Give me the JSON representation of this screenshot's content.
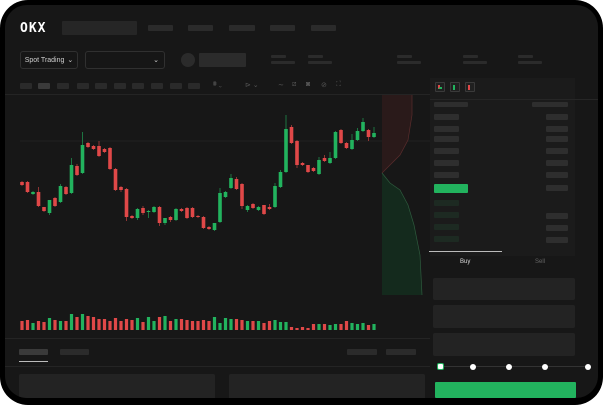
{
  "header": {
    "logo": "OKX",
    "nav_items": 5
  },
  "controls": {
    "market_button": "Spot Trading",
    "market_chevron": "⌄",
    "pair_chevron": "⌄"
  },
  "orderbook": {
    "tabs": [
      "Buy",
      "Sell"
    ],
    "active_tab": "Buy"
  },
  "order_form": {
    "slider_value_percent": 0,
    "slider_marks": [
      0,
      25,
      50,
      75,
      100
    ]
  },
  "colors": {
    "up": "#22b35e",
    "down": "#e04848",
    "accent": "#22b35e",
    "background": "#171717"
  },
  "chart_data": {
    "type": "candlestick",
    "candles": [
      [
        58,
        55,
        59,
        54
      ],
      [
        58,
        48,
        59,
        47
      ],
      [
        46,
        48,
        49,
        45
      ],
      [
        48,
        34,
        53,
        33
      ],
      [
        33,
        29,
        33,
        28
      ],
      [
        27,
        40,
        40,
        25
      ],
      [
        42,
        34,
        43,
        33
      ],
      [
        38,
        54,
        56,
        37
      ],
      [
        53,
        46,
        54,
        45
      ],
      [
        47,
        75,
        82,
        46
      ],
      [
        74,
        65,
        76,
        64
      ],
      [
        67,
        95,
        108,
        66
      ],
      [
        97,
        93,
        98,
        92
      ],
      [
        94,
        91,
        95,
        90
      ],
      [
        94,
        84,
        99,
        83
      ],
      [
        91,
        88,
        92,
        87
      ],
      [
        92,
        71,
        93,
        70
      ],
      [
        71,
        50,
        72,
        49
      ],
      [
        53,
        50,
        54,
        48
      ],
      [
        51,
        23,
        52,
        19
      ],
      [
        24,
        22,
        25,
        21
      ],
      [
        22,
        31,
        32,
        20
      ],
      [
        32,
        27,
        34,
        25
      ],
      [
        28,
        29,
        30,
        22
      ],
      [
        28,
        33,
        34,
        27
      ],
      [
        33,
        17,
        34,
        14
      ],
      [
        17,
        22,
        22,
        15
      ],
      [
        23,
        20,
        24,
        18
      ],
      [
        20,
        31,
        32,
        19
      ],
      [
        31,
        29,
        32,
        28
      ],
      [
        32,
        22,
        33,
        21
      ],
      [
        32,
        23,
        33,
        22
      ],
      [
        24,
        23,
        25,
        22
      ],
      [
        23,
        12,
        24,
        11
      ],
      [
        13,
        11,
        14,
        10
      ],
      [
        10,
        17,
        17,
        9
      ],
      [
        18,
        47,
        52,
        17
      ],
      [
        43,
        48,
        49,
        42
      ],
      [
        52,
        62,
        66,
        51
      ],
      [
        61,
        51,
        63,
        50
      ],
      [
        56,
        34,
        57,
        31
      ],
      [
        30,
        34,
        35,
        28
      ],
      [
        36,
        32,
        37,
        31
      ],
      [
        30,
        33,
        34,
        29
      ],
      [
        35,
        26,
        35,
        25
      ],
      [
        33,
        31,
        36,
        30
      ],
      [
        33,
        54,
        57,
        32
      ],
      [
        53,
        68,
        70,
        52
      ],
      [
        68,
        111,
        125,
        67
      ],
      [
        113,
        97,
        115,
        96
      ],
      [
        99,
        75,
        100,
        72
      ],
      [
        77,
        75,
        78,
        74
      ],
      [
        75,
        68,
        75,
        67
      ],
      [
        72,
        69,
        73,
        68
      ],
      [
        66,
        80,
        83,
        65
      ],
      [
        82,
        79,
        85,
        78
      ],
      [
        77,
        82,
        88,
        76
      ],
      [
        82,
        108,
        109,
        81
      ],
      [
        110,
        97,
        111,
        96
      ],
      [
        97,
        92,
        98,
        91
      ],
      [
        91,
        100,
        106,
        90
      ],
      [
        100,
        109,
        112,
        99
      ],
      [
        109,
        118,
        122,
        108
      ],
      [
        110,
        103,
        111,
        99
      ],
      [
        103,
        107,
        113,
        102
      ]
    ],
    "volume": [
      9,
      10,
      7,
      9,
      8,
      12,
      10,
      9,
      9,
      16,
      13,
      16,
      14,
      13,
      11,
      11,
      9,
      12,
      9,
      11,
      10,
      12,
      8,
      13,
      9,
      13,
      14,
      9,
      11,
      11,
      10,
      9,
      9,
      10,
      9,
      13,
      7,
      12,
      11,
      11,
      10,
      9,
      9,
      9,
      7,
      9,
      10,
      8,
      8,
      3,
      2,
      3,
      2,
      6,
      6,
      6,
      5,
      6,
      6,
      9,
      7,
      6,
      7,
      5,
      6
    ],
    "reference_line": 99
  }
}
